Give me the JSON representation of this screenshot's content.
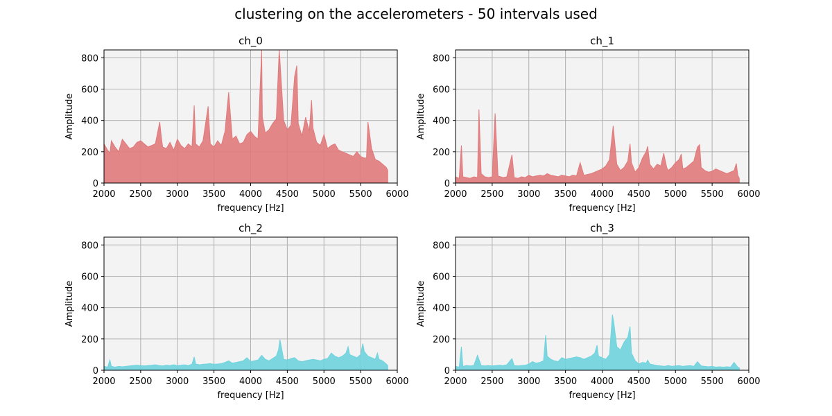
{
  "figure": {
    "suptitle": "clustering on the accelerometers - 50 intervals used"
  },
  "style": {
    "axes_background": "#f3f3f3",
    "grid_color": "#b0b0b0",
    "red_series": "#e07a7c",
    "cyan_series": "#6fd3dd"
  },
  "chart_data": [
    {
      "type": "area",
      "title": "ch_0",
      "xlabel": "frequency [Hz]",
      "ylabel": "Amplitude",
      "xlim": [
        2000,
        6000
      ],
      "ylim": [
        0,
        850
      ],
      "xticks": [
        2000,
        2500,
        3000,
        3500,
        4000,
        4500,
        5000,
        5500,
        6000
      ],
      "yticks": [
        0,
        200,
        400,
        600,
        800
      ],
      "grid": true,
      "color": "#e07a7c",
      "series": [
        {
          "x": [
            2000,
            2050,
            2080,
            2100,
            2150,
            2200,
            2250,
            2300,
            2350,
            2400,
            2450,
            2500,
            2550,
            2600,
            2650,
            2700,
            2760,
            2780,
            2800,
            2850,
            2900,
            2950,
            3000,
            3050,
            3100,
            3150,
            3200,
            3230,
            3250,
            3300,
            3350,
            3420,
            3450,
            3500,
            3550,
            3600,
            3650,
            3700,
            3750,
            3800,
            3850,
            3900,
            3950,
            4000,
            4050,
            4100,
            4150,
            4160,
            4200,
            4250,
            4300,
            4350,
            4390,
            4400,
            4450,
            4500,
            4550,
            4600,
            4630,
            4650,
            4700,
            4750,
            4800,
            4830,
            4850,
            4900,
            4950,
            5000,
            5050,
            5100,
            5150,
            5200,
            5250,
            5300,
            5350,
            5400,
            5450,
            5500,
            5550,
            5580,
            5600,
            5650,
            5700,
            5750,
            5800,
            5850,
            5870
          ],
          "y": [
            250,
            210,
            190,
            270,
            230,
            200,
            280,
            250,
            220,
            230,
            260,
            270,
            250,
            230,
            240,
            250,
            390,
            300,
            230,
            220,
            260,
            210,
            280,
            240,
            220,
            250,
            230,
            495,
            250,
            230,
            270,
            490,
            250,
            230,
            270,
            240,
            330,
            580,
            280,
            300,
            250,
            260,
            310,
            330,
            300,
            280,
            850,
            420,
            320,
            340,
            380,
            410,
            850,
            780,
            400,
            340,
            370,
            680,
            750,
            380,
            300,
            420,
            330,
            530,
            350,
            260,
            240,
            310,
            220,
            240,
            250,
            210,
            200,
            190,
            180,
            170,
            200,
            170,
            160,
            160,
            390,
            220,
            150,
            140,
            120,
            100,
            80
          ]
        }
      ]
    },
    {
      "type": "area",
      "title": "ch_1",
      "xlabel": "frequency [Hz]",
      "ylabel": "Amplitude",
      "xlim": [
        2000,
        6000
      ],
      "ylim": [
        0,
        850
      ],
      "xticks": [
        2000,
        2500,
        3000,
        3500,
        4000,
        4500,
        5000,
        5500,
        6000
      ],
      "yticks": [
        0,
        200,
        400,
        600,
        800
      ],
      "grid": true,
      "color": "#e07a7c",
      "series": [
        {
          "x": [
            2000,
            2050,
            2080,
            2100,
            2150,
            2200,
            2250,
            2300,
            2320,
            2350,
            2400,
            2450,
            2500,
            2540,
            2580,
            2650,
            2700,
            2770,
            2800,
            2850,
            2900,
            2950,
            3000,
            3050,
            3100,
            3150,
            3200,
            3250,
            3300,
            3350,
            3400,
            3450,
            3500,
            3550,
            3600,
            3650,
            3700,
            3750,
            3800,
            3850,
            3900,
            3950,
            4000,
            4050,
            4100,
            4150,
            4200,
            4250,
            4300,
            4350,
            4380,
            4400,
            4450,
            4500,
            4550,
            4600,
            4620,
            4650,
            4700,
            4750,
            4800,
            4840,
            4880,
            4900,
            4950,
            5000,
            5050,
            5080,
            5100,
            5150,
            5200,
            5250,
            5300,
            5330,
            5350,
            5400,
            5450,
            5500,
            5550,
            5600,
            5650,
            5700,
            5750,
            5800,
            5830,
            5850,
            5870
          ],
          "y": [
            40,
            30,
            240,
            40,
            35,
            30,
            40,
            35,
            470,
            60,
            40,
            35,
            40,
            445,
            45,
            35,
            40,
            180,
            35,
            30,
            40,
            35,
            50,
            40,
            45,
            50,
            45,
            60,
            50,
            45,
            40,
            50,
            45,
            40,
            50,
            45,
            130,
            50,
            55,
            60,
            70,
            80,
            90,
            110,
            150,
            365,
            120,
            80,
            100,
            140,
            250,
            130,
            70,
            100,
            160,
            200,
            235,
            120,
            90,
            120,
            110,
            190,
            100,
            80,
            100,
            130,
            150,
            185,
            90,
            100,
            120,
            140,
            230,
            245,
            100,
            80,
            70,
            75,
            90,
            80,
            70,
            60,
            70,
            80,
            125,
            50,
            30
          ]
        }
      ]
    },
    {
      "type": "area",
      "title": "ch_2",
      "xlabel": "frequency [Hz]",
      "ylabel": "Amplitude",
      "xlim": [
        2000,
        6000
      ],
      "ylim": [
        0,
        850
      ],
      "xticks": [
        2000,
        2500,
        3000,
        3500,
        4000,
        4500,
        5000,
        5500,
        6000
      ],
      "yticks": [
        0,
        200,
        400,
        600,
        800
      ],
      "grid": true,
      "color": "#6fd3dd",
      "series": [
        {
          "x": [
            2000,
            2050,
            2080,
            2100,
            2150,
            2200,
            2250,
            2300,
            2350,
            2400,
            2450,
            2500,
            2550,
            2600,
            2650,
            2700,
            2750,
            2800,
            2850,
            2900,
            2950,
            3000,
            3050,
            3100,
            3150,
            3200,
            3230,
            3250,
            3300,
            3350,
            3400,
            3450,
            3500,
            3550,
            3600,
            3650,
            3700,
            3750,
            3800,
            3850,
            3900,
            3950,
            4000,
            4050,
            4100,
            4150,
            4200,
            4250,
            4300,
            4350,
            4380,
            4400,
            4450,
            4500,
            4550,
            4600,
            4650,
            4700,
            4750,
            4800,
            4850,
            4900,
            4950,
            5000,
            5050,
            5100,
            5150,
            5200,
            5250,
            5300,
            5330,
            5350,
            5400,
            5450,
            5500,
            5530,
            5550,
            5600,
            5650,
            5700,
            5730,
            5750,
            5800,
            5850,
            5870
          ],
          "y": [
            25,
            20,
            65,
            25,
            20,
            25,
            22,
            25,
            28,
            30,
            32,
            30,
            28,
            30,
            32,
            35,
            30,
            28,
            32,
            30,
            35,
            30,
            32,
            35,
            30,
            38,
            85,
            40,
            35,
            38,
            40,
            42,
            38,
            40,
            42,
            50,
            60,
            45,
            50,
            55,
            60,
            80,
            55,
            60,
            65,
            95,
            70,
            60,
            75,
            90,
            130,
            195,
            70,
            65,
            75,
            80,
            60,
            55,
            60,
            65,
            70,
            65,
            60,
            70,
            75,
            110,
            90,
            80,
            90,
            110,
            150,
            100,
            90,
            80,
            100,
            170,
            120,
            90,
            80,
            70,
            110,
            70,
            60,
            40,
            30
          ]
        }
      ]
    },
    {
      "type": "area",
      "title": "ch_3",
      "xlabel": "frequency [Hz]",
      "ylabel": "Amplitude",
      "xlim": [
        2000,
        6000
      ],
      "ylim": [
        0,
        850
      ],
      "xticks": [
        2000,
        2500,
        3000,
        3500,
        4000,
        4500,
        5000,
        5500,
        6000
      ],
      "yticks": [
        0,
        200,
        400,
        600,
        800
      ],
      "grid": true,
      "color": "#6fd3dd",
      "series": [
        {
          "x": [
            2000,
            2050,
            2080,
            2100,
            2150,
            2200,
            2250,
            2300,
            2350,
            2400,
            2450,
            2500,
            2550,
            2600,
            2650,
            2700,
            2770,
            2800,
            2850,
            2900,
            2950,
            3000,
            3050,
            3100,
            3150,
            3200,
            3230,
            3250,
            3300,
            3350,
            3400,
            3450,
            3500,
            3550,
            3600,
            3650,
            3700,
            3750,
            3800,
            3850,
            3900,
            3930,
            3950,
            4000,
            4050,
            4100,
            4140,
            4160,
            4200,
            4250,
            4300,
            4350,
            4380,
            4400,
            4450,
            4500,
            4550,
            4600,
            4620,
            4650,
            4700,
            4750,
            4800,
            4850,
            4900,
            4950,
            5000,
            5050,
            5100,
            5150,
            5200,
            5250,
            5300,
            5350,
            5400,
            5450,
            5500,
            5550,
            5600,
            5650,
            5700,
            5750,
            5800,
            5850,
            5870
          ],
          "y": [
            25,
            20,
            150,
            25,
            30,
            28,
            30,
            95,
            30,
            28,
            30,
            28,
            30,
            32,
            30,
            35,
            75,
            30,
            28,
            30,
            32,
            40,
            55,
            45,
            50,
            60,
            225,
            90,
            70,
            60,
            55,
            80,
            70,
            75,
            80,
            85,
            80,
            70,
            80,
            90,
            110,
            160,
            90,
            80,
            70,
            100,
            355,
            300,
            150,
            130,
            180,
            210,
            280,
            110,
            60,
            40,
            50,
            45,
            65,
            40,
            35,
            30,
            28,
            25,
            30,
            25,
            28,
            30,
            25,
            28,
            30,
            25,
            55,
            28,
            25,
            22,
            25,
            20,
            22,
            20,
            22,
            20,
            50,
            20,
            15
          ]
        }
      ]
    }
  ]
}
